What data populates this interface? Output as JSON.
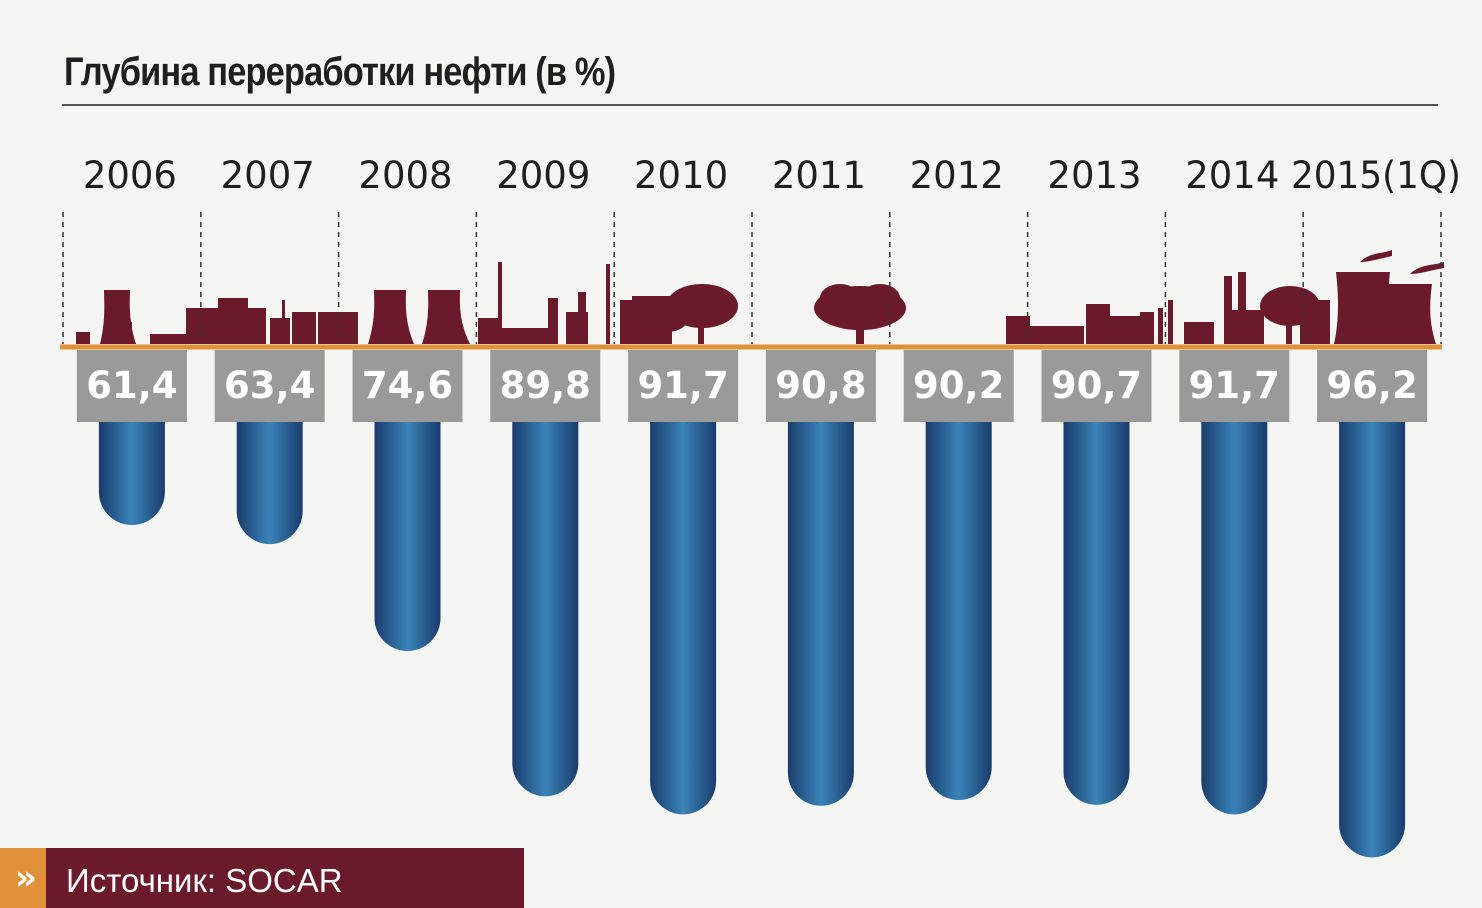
{
  "title": "Глубина переработки нефти (в %)",
  "source": {
    "chevron": "»",
    "label": "Источник:  SOCAR"
  },
  "colors": {
    "silhouette": "#6b1a2c",
    "baseline": "#e0913a",
    "label_box": "#9a9a9a",
    "tube_dark": "#1a3c6c",
    "tube_light": "#3a83b8"
  },
  "chart_data": {
    "type": "bar",
    "categories": [
      "2006",
      "2007",
      "2008",
      "2009",
      "2010",
      "2011",
      "2012",
      "2013",
      "2014",
      "2015(1Q)"
    ],
    "values": [
      61.4,
      63.4,
      74.6,
      89.8,
      91.7,
      90.8,
      90.2,
      90.7,
      91.7,
      96.2
    ],
    "value_labels": [
      "61,4",
      "63,4",
      "74,6",
      "89,8",
      "91,7",
      "90,8",
      "90,2",
      "90,7",
      "91,7",
      "96,2"
    ],
    "ylabel": "",
    "xlabel": ""
  }
}
